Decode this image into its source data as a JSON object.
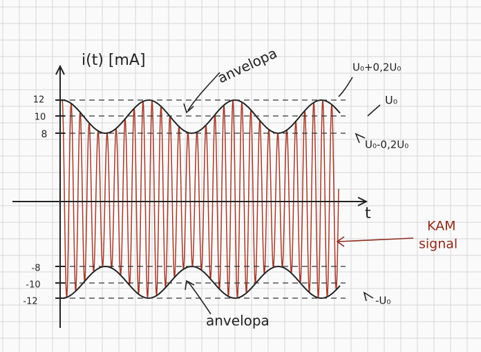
{
  "axis_label_y": "i(t) [mA]",
  "axis_label_x": "t",
  "yticks": [
    "12",
    "10",
    "8",
    "-8",
    "-10",
    "-12"
  ],
  "annotations": {
    "envelope_top": "anvelopa",
    "envelope_bottom": "anvelopa",
    "max": "U₀+0,2U₀",
    "mid": "U₀",
    "min": "U₀-0,2U₀",
    "neg": "-U₀",
    "signal_line1": "KAM",
    "signal_line2": "signal"
  }
}
